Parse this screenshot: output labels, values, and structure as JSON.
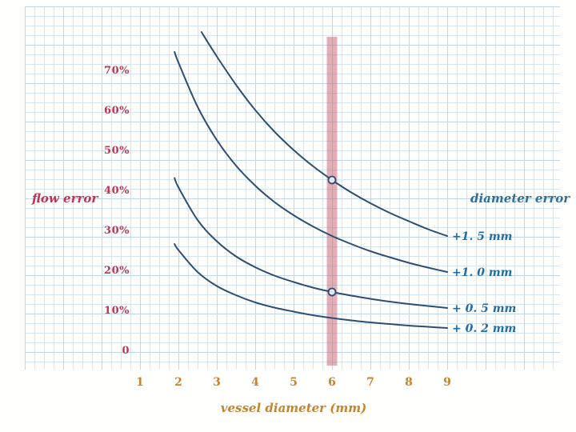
{
  "labels": {
    "flow_error": "flow error",
    "diameter_error": "diameter error",
    "x_title": "vessel diameter (mm)"
  },
  "colors": {
    "curve": "#2d4d73",
    "band": "#c85f6e",
    "y_label_text": "#c03352",
    "x_label_text": "#c5832b",
    "curve_label_text": "#1f6da6",
    "diameter_error_text": "#2e7096",
    "grid_minor": "#d4e6f3",
    "grid_major": "#bdd8eb",
    "marker_fill": "#edf2f7"
  },
  "chart_data": {
    "type": "line",
    "title": "",
    "xlabel": "vessel diameter (mm)",
    "ylabel": "flow error",
    "legend_title": "diameter error",
    "xlim": [
      1,
      9
    ],
    "ylim": [
      0,
      80
    ],
    "grid": true,
    "highlight_x": 6,
    "x_ticks": [
      1,
      2,
      3,
      4,
      5,
      6,
      7,
      8,
      9
    ],
    "y_ticks": [
      {
        "label": "70%",
        "value": 70
      },
      {
        "label": "60%",
        "value": 60
      },
      {
        "label": "50%",
        "value": 50
      },
      {
        "label": "40%",
        "value": 40
      },
      {
        "label": "30%",
        "value": 30
      },
      {
        "label": "20%",
        "value": 20
      },
      {
        "label": "10%",
        "value": 10
      },
      {
        "label": "0",
        "value": 0
      }
    ],
    "series": [
      {
        "name": "+1. 5 mm",
        "diameter_error_mm": 1.5,
        "points": [
          [
            2.6,
            80
          ],
          [
            3,
            73.9
          ],
          [
            3.5,
            66.8
          ],
          [
            4,
            60.5
          ],
          [
            4.5,
            55.1
          ],
          [
            5,
            50.5
          ],
          [
            5.5,
            46.5
          ],
          [
            6,
            43
          ],
          [
            6.5,
            39.9
          ],
          [
            7,
            37.2
          ],
          [
            7.5,
            34.8
          ],
          [
            8,
            32.7
          ],
          [
            8.5,
            30.7
          ],
          [
            9,
            29
          ]
        ]
      },
      {
        "name": "+1. 0 mm",
        "diameter_error_mm": 1.0,
        "points": [
          [
            1.9,
            75
          ],
          [
            2,
            72.4
          ],
          [
            2.5,
            61.3
          ],
          [
            3,
            53
          ],
          [
            3.5,
            46.6
          ],
          [
            4,
            41.6
          ],
          [
            4.5,
            37.5
          ],
          [
            5,
            34.2
          ],
          [
            5.5,
            31.4
          ],
          [
            6,
            29
          ],
          [
            6.5,
            27
          ],
          [
            7,
            25.2
          ],
          [
            7.5,
            23.7
          ],
          [
            8,
            22.3
          ],
          [
            8.5,
            21.1
          ],
          [
            9,
            20
          ]
        ]
      },
      {
        "name": "+ 0. 5 mm",
        "diameter_error_mm": 0.5,
        "points": [
          [
            1.9,
            43.5
          ],
          [
            2,
            41.2
          ],
          [
            2.5,
            33
          ],
          [
            3,
            27.7
          ],
          [
            3.5,
            23.9
          ],
          [
            4,
            21.2
          ],
          [
            4.5,
            19.1
          ],
          [
            5,
            17.5
          ],
          [
            5.5,
            16.1
          ],
          [
            6,
            15
          ],
          [
            6.5,
            14.1
          ],
          [
            7,
            13.3
          ],
          [
            7.5,
            12.6
          ],
          [
            8,
            12
          ],
          [
            8.5,
            11.5
          ],
          [
            9,
            11
          ]
        ]
      },
      {
        "name": "+ 0. 2 mm",
        "diameter_error_mm": 0.2,
        "points": [
          [
            1.9,
            27
          ],
          [
            2,
            25.5
          ],
          [
            2.5,
            20
          ],
          [
            3,
            16.5
          ],
          [
            3.5,
            14.2
          ],
          [
            4,
            12.4
          ],
          [
            4.5,
            11.1
          ],
          [
            5,
            10.1
          ],
          [
            5.5,
            9.2
          ],
          [
            6,
            8.5
          ],
          [
            6.5,
            7.9
          ],
          [
            7,
            7.4
          ],
          [
            7.5,
            7
          ],
          [
            8,
            6.6
          ],
          [
            8.5,
            6.3
          ],
          [
            9,
            6
          ]
        ]
      }
    ],
    "markers": [
      {
        "x": 6,
        "y": 43
      },
      {
        "x": 6,
        "y": 15
      }
    ]
  }
}
